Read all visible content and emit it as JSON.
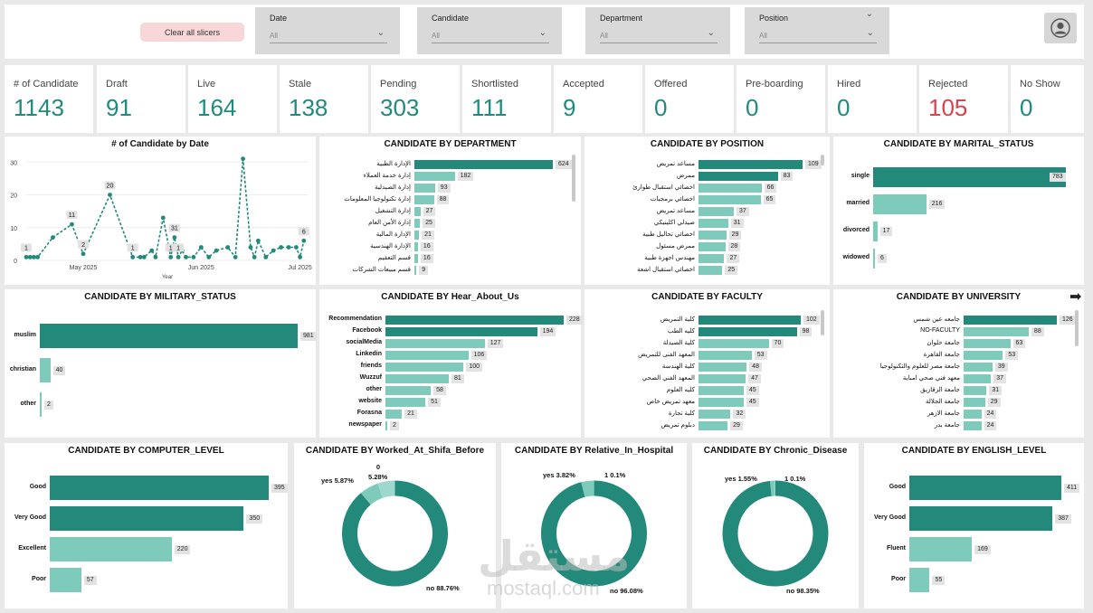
{
  "header": {
    "clear_label": "Clear all slicers",
    "slicers": [
      {
        "label": "Date",
        "value": "All"
      },
      {
        "label": "Candidate",
        "value": "All"
      },
      {
        "label": "Department",
        "value": "All"
      },
      {
        "label": "Position",
        "value": "All"
      }
    ]
  },
  "kpis": [
    {
      "label": "# of Candidate",
      "value": "1143"
    },
    {
      "label": "Draft",
      "value": "91"
    },
    {
      "label": "Live",
      "value": "164"
    },
    {
      "label": "Stale",
      "value": "138"
    },
    {
      "label": "Pending",
      "value": "303"
    },
    {
      "label": "Shortlisted",
      "value": "111"
    },
    {
      "label": "Accepted",
      "value": "9"
    },
    {
      "label": "Offered",
      "value": "0"
    },
    {
      "label": "Pre-boarding",
      "value": "0"
    },
    {
      "label": "Hired",
      "value": "0"
    },
    {
      "label": "Rejected",
      "value": "105"
    },
    {
      "label": "No Show",
      "value": "0"
    }
  ],
  "colors": {
    "dark": "#23897b",
    "light": "#7ecbbb",
    "red": "#d8434e"
  },
  "line_chart": {
    "title": "# of Candidate by Date",
    "xlabel": "Year",
    "yticks": [
      "0",
      "10",
      "20",
      "30"
    ],
    "xticks": [
      "May 2025",
      "Jun 2025",
      "Jul 2025"
    ],
    "data_labels": [
      "1",
      "11",
      "2",
      "20",
      "1",
      "1",
      "31",
      "1",
      "6"
    ]
  },
  "chart_data": [
    {
      "type": "line",
      "title": "# of Candidate by Date",
      "xlabel": "Year",
      "ylabel": "",
      "ylim": [
        0,
        32
      ],
      "x": [
        "2025-04-20",
        "2025-04-21",
        "2025-04-22",
        "2025-04-23",
        "2025-04-27",
        "2025-05-02",
        "2025-05-05",
        "2025-05-12",
        "2025-05-18",
        "2025-05-20",
        "2025-05-21",
        "2025-05-23",
        "2025-05-24",
        "2025-05-26",
        "2025-05-28",
        "2025-05-29",
        "2025-05-30",
        "2025-05-31",
        "2025-06-01",
        "2025-06-03",
        "2025-06-05",
        "2025-06-07",
        "2025-06-09",
        "2025-06-12",
        "2025-06-14",
        "2025-06-16",
        "2025-06-18",
        "2025-06-19",
        "2025-06-20",
        "2025-06-22",
        "2025-06-24",
        "2025-06-26",
        "2025-06-28",
        "2025-06-30",
        "2025-07-01",
        "2025-07-02"
      ],
      "values": [
        1,
        1,
        1,
        1,
        7,
        11,
        2,
        20,
        1,
        1,
        1,
        3,
        1,
        13,
        1,
        7,
        1,
        3,
        1,
        1,
        4,
        1,
        3,
        4,
        1,
        31,
        4,
        1,
        6,
        1,
        3,
        4,
        4,
        4,
        1,
        6
      ]
    },
    {
      "type": "bar",
      "title": "CANDIDATE BY DEPARTMENT",
      "categories": [
        "الإدارة الطبية",
        "إدارة خدمة العملاء",
        "إدارة الصيدلية",
        "إدارة تكنولوجيا المعلومات",
        "إدارة التشغيل",
        "إدارة الأمن العام",
        "الإدارة المالية",
        "الإدارة الهندسية",
        "قسم التعقيم",
        "قسم مبيعات الشركات"
      ],
      "values": [
        624,
        182,
        93,
        88,
        27,
        25,
        21,
        16,
        16,
        9
      ]
    },
    {
      "type": "bar",
      "title": "CANDIDATE BY POSITION",
      "categories": [
        "مساعد تمريض",
        "ممرض",
        "اخصائي استقبال طوارئ",
        "اخصائي برمجيات",
        "مساعد تمريض",
        "صيدلي اكلينيكي",
        "اخصائي تحاليل طبية",
        "ممرض مسئول",
        "مهندس اجهزة طبية",
        "اخصائي استقبال اشعة"
      ],
      "values": [
        109,
        83,
        66,
        65,
        37,
        31,
        29,
        28,
        27,
        25
      ]
    },
    {
      "type": "bar",
      "title": "CANDIDATE BY MARITAL_STATUS",
      "categories": [
        "single",
        "married",
        "divorced",
        "widowed"
      ],
      "values": [
        783,
        216,
        17,
        6
      ]
    },
    {
      "type": "bar",
      "title": "CANDIDATE BY MILITARY_STATUS",
      "categories": [
        "muslim",
        "christian",
        "other"
      ],
      "values": [
        981,
        40,
        2
      ]
    },
    {
      "type": "bar",
      "title": "CANDIDATE BY Hear_About_Us",
      "categories": [
        "Recommendation",
        "Facebook",
        "socialMedia",
        "Linkedin",
        "friends",
        "Wuzzuf",
        "other",
        "website",
        "Forasna",
        "newspaper"
      ],
      "values": [
        228,
        194,
        127,
        106,
        100,
        81,
        58,
        51,
        21,
        2
      ]
    },
    {
      "type": "bar",
      "title": "CANDIDATE BY FACULTY",
      "categories": [
        "كلية التمريض",
        "كليه الطب",
        "كلية الصيدلة",
        "المعهد الفنى للتمريض",
        "كلية الهندسة",
        "المعهد الفني الصحي",
        "كليه العلوم",
        "معهد تمريض خاص",
        "كلية تجارة",
        "دبلوم تمريض"
      ],
      "values": [
        102,
        98,
        70,
        53,
        48,
        47,
        45,
        45,
        32,
        29
      ]
    },
    {
      "type": "bar",
      "title": "CANDIDATE BY UNIVERSITY",
      "categories": [
        "جامعه عين شمس",
        "NO-FACULTY",
        "جامعة حلوان",
        "جامعة القاهرة",
        "جامعة مصر للعلوم والتكنولوجيا",
        "معهد فني صحي امبابة",
        "جامعة الزقازيق",
        "جامعة الجلالة",
        "جامعة الازهر",
        "جامعة بدر"
      ],
      "values": [
        126,
        88,
        63,
        53,
        39,
        37,
        31,
        29,
        24,
        24
      ]
    },
    {
      "type": "bar",
      "title": "CANDIDATE BY COMPUTER_LEVEL",
      "categories": [
        "Good",
        "Very Good",
        "Excellent",
        "Poor"
      ],
      "values": [
        395,
        350,
        220,
        57
      ]
    },
    {
      "type": "pie",
      "title": "CANDIDATE BY Worked_At_Shifa_Before",
      "labels": [
        "no 88.76%",
        "yes 5.87%",
        "0 5.28%"
      ],
      "values": [
        88.76,
        5.87,
        5.28
      ]
    },
    {
      "type": "pie",
      "title": "CANDIDATE BY Relative_In_Hospital",
      "labels": [
        "no 96.08%",
        "yes 3.82%",
        "1 0.1%"
      ],
      "values": [
        96.08,
        3.82,
        0.1
      ]
    },
    {
      "type": "pie",
      "title": "CANDIDATE BY Chronic_Disease",
      "labels": [
        "no 98.35%",
        "yes 1.55%",
        "1 0.1%"
      ],
      "values": [
        98.35,
        1.55,
        0.1
      ]
    },
    {
      "type": "bar",
      "title": "CANDIDATE BY ENGLISH_LEVEL",
      "categories": [
        "Good",
        "Very Good",
        "Fluent",
        "Poor"
      ],
      "values": [
        411,
        387,
        169,
        55
      ]
    }
  ],
  "watermark": {
    "ar": "مستقل",
    "en": "mostaql.com"
  }
}
